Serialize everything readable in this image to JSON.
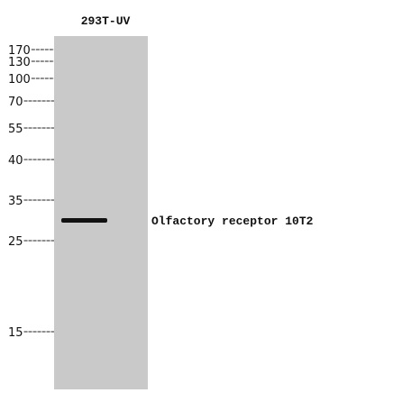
{
  "lane": {
    "label": "293T-UV"
  },
  "markers": [
    "170",
    "130",
    "100",
    "70",
    "55",
    "40",
    "35",
    "25",
    "15"
  ],
  "band": {
    "label": "Olfactory receptor 10T2"
  }
}
